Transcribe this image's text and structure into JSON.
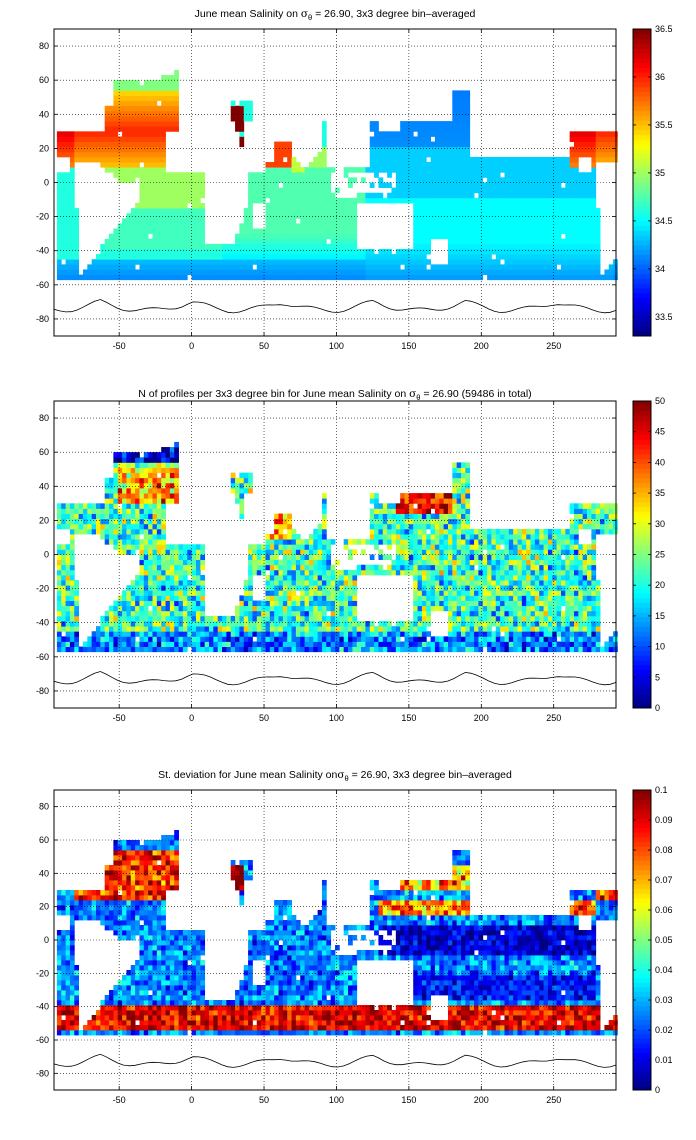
{
  "chart_data": [
    {
      "type": "heatmap",
      "title_parts": [
        "June mean Salinity on ",
        "σ",
        "θ",
        " = 26.90, 3x3 degree bin–averaged"
      ],
      "xticks": [
        -50,
        0,
        50,
        100,
        150,
        200,
        250
      ],
      "yticks": [
        80,
        60,
        40,
        20,
        0,
        -20,
        -40,
        -60,
        -80
      ],
      "xlim": [
        -95,
        293
      ],
      "ylim": [
        -90,
        90
      ],
      "colorbar": {
        "ticks": [
          "36.5",
          "36",
          "35.5",
          "35",
          "34.5",
          "34",
          "33.5"
        ],
        "values": [
          36.5,
          36,
          35.5,
          35,
          34.5,
          34,
          33.5
        ],
        "range": [
          33.3,
          36.5
        ]
      },
      "colormap": "jet",
      "grid": true,
      "field": "salinity"
    },
    {
      "type": "heatmap",
      "title_parts": [
        "N of profiles per 3x3 degree bin for June mean Salinity on ",
        "σ",
        "θ",
        " = 26.90 (59486 in total)"
      ],
      "xticks": [
        -50,
        0,
        50,
        100,
        150,
        200,
        250
      ],
      "yticks": [
        80,
        60,
        40,
        20,
        0,
        -20,
        -40,
        -60,
        -80
      ],
      "xlim": [
        -95,
        293
      ],
      "ylim": [
        -90,
        90
      ],
      "colorbar": {
        "ticks": [
          "50",
          "45",
          "40",
          "35",
          "30",
          "25",
          "20",
          "15",
          "10",
          "5",
          "0"
        ],
        "values": [
          50,
          45,
          40,
          35,
          30,
          25,
          20,
          15,
          10,
          5,
          0
        ],
        "range": [
          0,
          50
        ]
      },
      "colormap": "jet",
      "grid": true,
      "field": "count"
    },
    {
      "type": "heatmap",
      "title_parts": [
        "St. deviation for June mean Salinity on",
        "σ",
        "θ",
        " = 26.90, 3x3 degree bin–averaged"
      ],
      "xticks": [
        -50,
        0,
        50,
        100,
        150,
        200,
        250
      ],
      "yticks": [
        80,
        60,
        40,
        20,
        0,
        -20,
        -40,
        -60,
        -80
      ],
      "xlim": [
        -95,
        293
      ],
      "ylim": [
        -90,
        90
      ],
      "colorbar": {
        "ticks": [
          "0.1",
          "0.09",
          "0.08",
          "0.07",
          "0.06",
          "0.05",
          "0.04",
          "0.03",
          "0.02",
          "0.01",
          "0"
        ],
        "values": [
          0.1,
          0.09,
          0.08,
          0.07,
          0.06,
          0.05,
          0.04,
          0.03,
          0.02,
          0.01,
          0
        ],
        "range": [
          0,
          0.1
        ]
      },
      "colormap": "jet",
      "grid": true,
      "field": "stdev"
    }
  ]
}
